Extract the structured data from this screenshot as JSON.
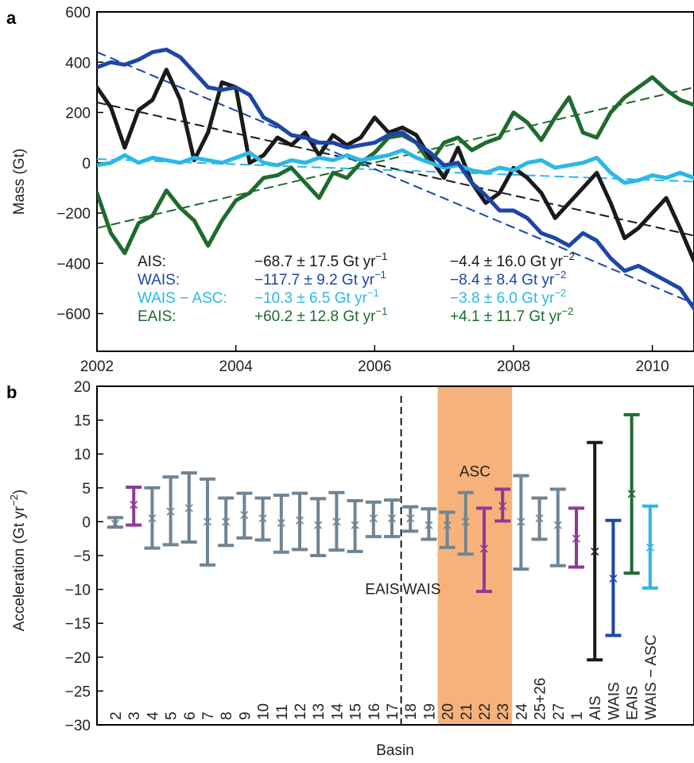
{
  "panel_a_label": "a",
  "panel_b_label": "b",
  "colors": {
    "AIS": "#1a1a1a",
    "WAIS": "#1c46a8",
    "WAIS_ASC": "#29b8e8",
    "EAIS": "#1f6b2f",
    "basin_gray": "#6f8494",
    "basin_purple": "#8e3a96",
    "asc_shade": "#f6b27a"
  },
  "chart_data": [
    {
      "type": "line",
      "ylabel": "Mass (Gt)",
      "xlim": [
        2002.0,
        2010.6
      ],
      "ylim": [
        -750,
        600
      ],
      "x_ticks": [
        2002,
        2004,
        2006,
        2008,
        2010
      ],
      "x_tick_labels": [
        "2002",
        "2004",
        "2006",
        "2008",
        "2010"
      ],
      "y_ticks": [
        -600,
        -400,
        -200,
        0,
        200,
        400,
        600
      ],
      "y_tick_labels": [
        "−600",
        "−400",
        "−200",
        "0",
        "200",
        "400",
        "600"
      ],
      "series": [
        {
          "key": "AIS",
          "x": [
            2002.0,
            2002.2,
            2002.4,
            2002.6,
            2002.8,
            2003.0,
            2003.2,
            2003.4,
            2003.6,
            2003.8,
            2004.0,
            2004.2,
            2004.4,
            2004.6,
            2004.8,
            2005.0,
            2005.2,
            2005.4,
            2005.6,
            2005.8,
            2006.0,
            2006.2,
            2006.4,
            2006.6,
            2006.8,
            2007.0,
            2007.2,
            2007.4,
            2007.6,
            2007.8,
            2008.0,
            2008.2,
            2008.4,
            2008.6,
            2008.8,
            2009.0,
            2009.2,
            2009.4,
            2009.6,
            2009.8,
            2010.0,
            2010.2,
            2010.4,
            2010.6
          ],
          "y": [
            300,
            220,
            60,
            210,
            250,
            370,
            250,
            10,
            120,
            320,
            300,
            0,
            30,
            100,
            70,
            120,
            30,
            110,
            70,
            100,
            180,
            120,
            140,
            110,
            20,
            -60,
            60,
            -80,
            -160,
            -120,
            -20,
            -60,
            -120,
            -220,
            -160,
            -100,
            -40,
            -160,
            -300,
            -260,
            -200,
            -140,
            -260,
            -390
          ],
          "trend": [
            240,
            -290
          ]
        },
        {
          "key": "WAIS",
          "x": [
            2002.0,
            2002.2,
            2002.4,
            2002.6,
            2002.8,
            2003.0,
            2003.2,
            2003.4,
            2003.6,
            2003.8,
            2004.0,
            2004.2,
            2004.4,
            2004.6,
            2004.8,
            2005.0,
            2005.2,
            2005.4,
            2005.6,
            2005.8,
            2006.0,
            2006.2,
            2006.4,
            2006.6,
            2006.8,
            2007.0,
            2007.2,
            2007.4,
            2007.6,
            2007.8,
            2008.0,
            2008.2,
            2008.4,
            2008.6,
            2008.8,
            2009.0,
            2009.2,
            2009.4,
            2009.6,
            2009.8,
            2010.0,
            2010.2,
            2010.4,
            2010.6
          ],
          "y": [
            380,
            400,
            390,
            410,
            440,
            450,
            420,
            360,
            300,
            290,
            300,
            270,
            180,
            150,
            110,
            100,
            80,
            80,
            60,
            70,
            80,
            110,
            120,
            80,
            40,
            -10,
            0,
            -80,
            -130,
            -190,
            -190,
            -220,
            -280,
            -300,
            -330,
            -280,
            -310,
            -380,
            -430,
            -410,
            -440,
            -470,
            -500,
            -580
          ],
          "trend": [
            440,
            -560
          ]
        },
        {
          "key": "WAIS_ASC",
          "x": [
            2002.0,
            2002.2,
            2002.4,
            2002.6,
            2002.8,
            2003.0,
            2003.2,
            2003.4,
            2003.6,
            2003.8,
            2004.0,
            2004.2,
            2004.4,
            2004.6,
            2004.8,
            2005.0,
            2005.2,
            2005.4,
            2005.6,
            2005.8,
            2006.0,
            2006.2,
            2006.4,
            2006.6,
            2006.8,
            2007.0,
            2007.2,
            2007.4,
            2007.6,
            2007.8,
            2008.0,
            2008.2,
            2008.4,
            2008.6,
            2008.8,
            2009.0,
            2009.2,
            2009.4,
            2009.6,
            2009.8,
            2010.0,
            2010.2,
            2010.4,
            2010.6
          ],
          "y": [
            -10,
            0,
            30,
            0,
            20,
            10,
            0,
            20,
            10,
            0,
            20,
            40,
            0,
            -10,
            10,
            0,
            20,
            10,
            30,
            10,
            20,
            30,
            50,
            20,
            0,
            -20,
            -10,
            -30,
            -40,
            -20,
            -30,
            0,
            10,
            -20,
            -10,
            0,
            20,
            -40,
            -80,
            -70,
            -50,
            -60,
            -40,
            -60
          ],
          "trend": [
            15,
            -75
          ]
        },
        {
          "key": "EAIS",
          "x": [
            2002.0,
            2002.2,
            2002.4,
            2002.6,
            2002.8,
            2003.0,
            2003.2,
            2003.4,
            2003.6,
            2003.8,
            2004.0,
            2004.2,
            2004.4,
            2004.6,
            2004.8,
            2005.0,
            2005.2,
            2005.4,
            2005.6,
            2005.8,
            2006.0,
            2006.2,
            2006.4,
            2006.6,
            2006.8,
            2007.0,
            2007.2,
            2007.4,
            2007.6,
            2007.8,
            2008.0,
            2008.2,
            2008.4,
            2008.6,
            2008.8,
            2009.0,
            2009.2,
            2009.4,
            2009.6,
            2009.8,
            2010.0,
            2010.2,
            2010.4,
            2010.6
          ],
          "y": [
            -120,
            -280,
            -360,
            -240,
            -210,
            -110,
            -180,
            -230,
            -330,
            -230,
            -150,
            -120,
            -60,
            -50,
            -20,
            -80,
            -140,
            -40,
            -60,
            0,
            40,
            100,
            110,
            80,
            0,
            80,
            100,
            50,
            80,
            100,
            200,
            160,
            90,
            180,
            260,
            120,
            100,
            200,
            260,
            300,
            340,
            290,
            250,
            230
          ],
          "trend": [
            -260,
            300
          ]
        }
      ],
      "legend": [
        {
          "key": "AIS",
          "name": "AIS:",
          "rate": "−68.7 ± 17.5 Gt yr",
          "acc": "−4.4 ± 16.0 Gt yr"
        },
        {
          "key": "WAIS",
          "name": "WAIS:",
          "rate": "−117.7 ± 9.2 Gt yr",
          "acc": "−8.4 ± 8.4 Gt yr"
        },
        {
          "key": "WAIS_ASC",
          "name": "WAIS − ASC:",
          "rate": "−10.3 ± 6.5 Gt yr",
          "acc": "−3.8 ± 6.0 Gt yr"
        },
        {
          "key": "EAIS",
          "name": "EAIS:",
          "rate": "+60.2 ± 12.8 Gt yr",
          "acc": "+4.1 ± 11.7 Gt yr"
        }
      ],
      "legend_rate_sup": "−1",
      "legend_acc_sup": "−2",
      "legend_placement": "bottom-left"
    },
    {
      "type": "errorbar",
      "xlabel": "Basin",
      "ylabel": "Acceleration (Gt yr",
      "ylabel_sup": "−2",
      "ylabel_close": ")",
      "ylim": [
        -30,
        20
      ],
      "y_ticks": [
        -30,
        -25,
        -20,
        -15,
        -10,
        -5,
        0,
        5,
        10,
        15,
        20
      ],
      "y_tick_labels": [
        "−30",
        "−25",
        "−20",
        "−15",
        "−10",
        "−5",
        "0",
        "5",
        "10",
        "15",
        "20"
      ],
      "categories": [
        "2",
        "3",
        "4",
        "5",
        "6",
        "7",
        "8",
        "9",
        "10",
        "11",
        "12",
        "13",
        "14",
        "15",
        "16",
        "17",
        "18",
        "19",
        "20",
        "21",
        "22",
        "23",
        "24",
        "25+26",
        "27",
        "1",
        "AIS",
        "WAIS",
        "EAIS",
        "WAIS − ASC"
      ],
      "values": [
        -0.3,
        2.5,
        0.5,
        1.5,
        2.0,
        0.0,
        0.0,
        1.0,
        0.5,
        -0.2,
        0.2,
        -0.5,
        0.0,
        -0.5,
        0.5,
        0.5,
        0.5,
        -0.5,
        -0.5,
        0.0,
        -4.0,
        2.3,
        0.0,
        0.5,
        -0.5,
        -2.5,
        -4.4,
        -8.4,
        4.1,
        -3.8
      ],
      "lower": [
        -0.8,
        -0.5,
        -3.9,
        -3.4,
        -3.0,
        -6.4,
        -3.5,
        -2.4,
        -2.7,
        -4.5,
        -4.1,
        -5.0,
        -4.2,
        -4.4,
        -2.2,
        -2.2,
        -1.4,
        -2.6,
        -3.8,
        -4.8,
        -10.3,
        0.1,
        -7.0,
        -2.6,
        -6.5,
        -6.7,
        -20.4,
        -16.8,
        -7.6,
        -9.8
      ],
      "upper": [
        0.6,
        5.1,
        5.0,
        6.6,
        7.2,
        6.3,
        3.5,
        4.2,
        3.5,
        3.9,
        4.2,
        3.4,
        4.3,
        3.1,
        2.9,
        3.2,
        2.2,
        1.9,
        1.4,
        4.3,
        2.0,
        4.8,
        6.8,
        3.5,
        4.8,
        2.0,
        11.7,
        0.2,
        15.8,
        2.3
      ],
      "colors": [
        "gray",
        "purple",
        "gray",
        "gray",
        "gray",
        "gray",
        "gray",
        "gray",
        "gray",
        "gray",
        "gray",
        "gray",
        "gray",
        "gray",
        "gray",
        "gray",
        "gray",
        "gray",
        "gray",
        "gray",
        "purple",
        "purple",
        "gray",
        "gray",
        "gray",
        "purple",
        "AIS",
        "WAIS",
        "EAIS",
        "WAIS_ASC"
      ],
      "annotations": {
        "shade_label": "ASC",
        "eais_label": "EAIS",
        "wais_label": "WAIS"
      }
    }
  ]
}
